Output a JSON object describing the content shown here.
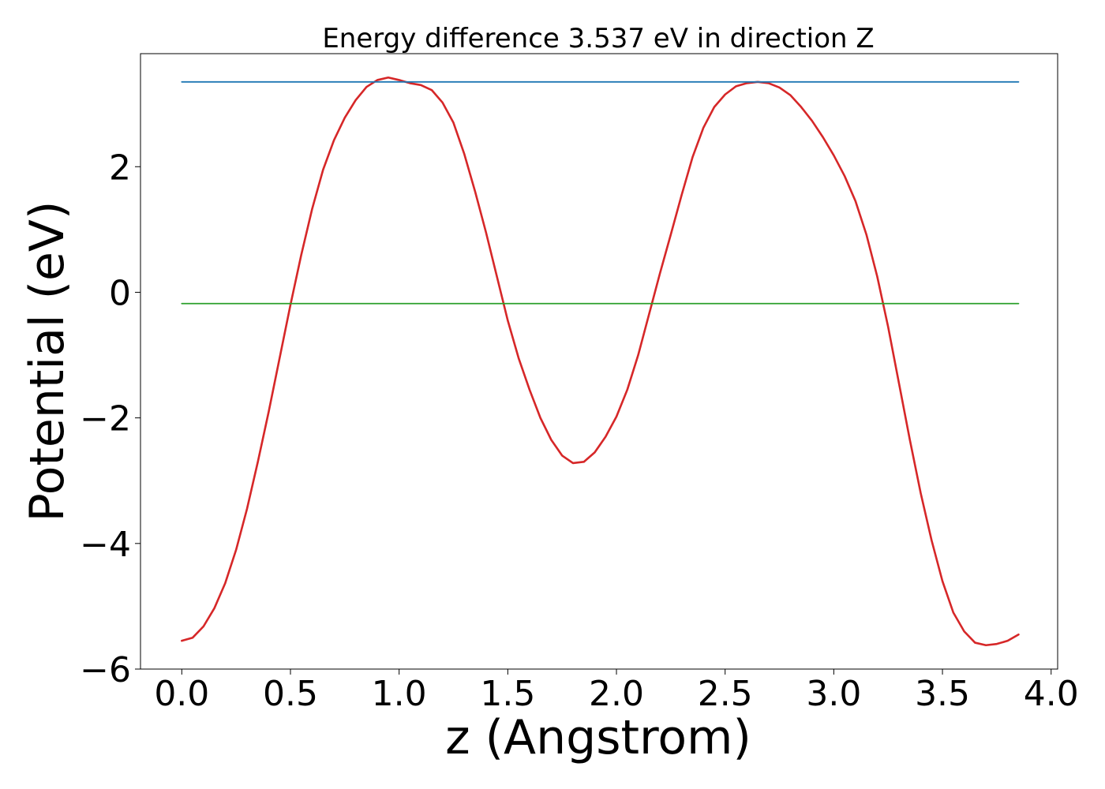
{
  "chart_data": {
    "type": "line",
    "title": "Energy difference 3.537 eV in direction Z",
    "xlabel": "z (Angstrom)",
    "ylabel": "Potential (eV)",
    "xlim": [
      -0.19,
      4.03
    ],
    "ylim": [
      -6.0,
      3.8
    ],
    "x_ticks": [
      0.0,
      0.5,
      1.0,
      1.5,
      2.0,
      2.5,
      3.0,
      3.5,
      4.0
    ],
    "x_tick_labels": [
      "0.0",
      "0.5",
      "1.0",
      "1.5",
      "2.0",
      "2.5",
      "3.0",
      "3.5",
      "4.0"
    ],
    "y_ticks": [
      -6,
      -4,
      -2,
      0,
      2
    ],
    "y_tick_labels": [
      "−6",
      "−4",
      "−2",
      "0",
      "2"
    ],
    "grid": false,
    "series": [
      {
        "color": "#d62728",
        "x": [
          0.0,
          0.05,
          0.1,
          0.15,
          0.2,
          0.25,
          0.3,
          0.35,
          0.4,
          0.45,
          0.5,
          0.55,
          0.6,
          0.65,
          0.7,
          0.75,
          0.8,
          0.85,
          0.9,
          0.95,
          1.0,
          1.05,
          1.1,
          1.15,
          1.2,
          1.25,
          1.3,
          1.35,
          1.4,
          1.45,
          1.5,
          1.55,
          1.6,
          1.65,
          1.7,
          1.75,
          1.8,
          1.85,
          1.9,
          1.95,
          2.0,
          2.05,
          2.1,
          2.15,
          2.2,
          2.25,
          2.3,
          2.35,
          2.4,
          2.45,
          2.5,
          2.55,
          2.6,
          2.65,
          2.7,
          2.75,
          2.8,
          2.85,
          2.9,
          2.95,
          3.0,
          3.05,
          3.1,
          3.15,
          3.2,
          3.25,
          3.3,
          3.35,
          3.4,
          3.45,
          3.5,
          3.55,
          3.6,
          3.65,
          3.7,
          3.75,
          3.8,
          3.85
        ],
        "y": [
          -5.55,
          -5.5,
          -5.32,
          -5.03,
          -4.63,
          -4.1,
          -3.45,
          -2.7,
          -1.9,
          -1.05,
          -0.2,
          0.6,
          1.33,
          1.95,
          2.42,
          2.78,
          3.06,
          3.27,
          3.38,
          3.42,
          3.38,
          3.33,
          3.3,
          3.22,
          3.02,
          2.7,
          2.2,
          1.6,
          0.95,
          0.25,
          -0.45,
          -1.05,
          -1.55,
          -2.0,
          -2.35,
          -2.6,
          -2.72,
          -2.7,
          -2.55,
          -2.3,
          -1.98,
          -1.55,
          -1.0,
          -0.35,
          0.3,
          0.92,
          1.55,
          2.15,
          2.62,
          2.95,
          3.15,
          3.28,
          3.33,
          3.35,
          3.33,
          3.26,
          3.14,
          2.95,
          2.73,
          2.47,
          2.18,
          1.85,
          1.45,
          0.92,
          0.25,
          -0.55,
          -1.45,
          -2.35,
          -3.2,
          -3.95,
          -4.6,
          -5.1,
          -5.4,
          -5.58,
          -5.62,
          -5.6,
          -5.55,
          -5.45
        ]
      },
      {
        "color": "#1f77b4",
        "x": [
          0.0,
          3.85
        ],
        "y": [
          3.35,
          3.35
        ]
      },
      {
        "color": "#2ca02c",
        "x": [
          0.0,
          3.85
        ],
        "y": [
          -0.18,
          -0.18
        ]
      }
    ]
  }
}
